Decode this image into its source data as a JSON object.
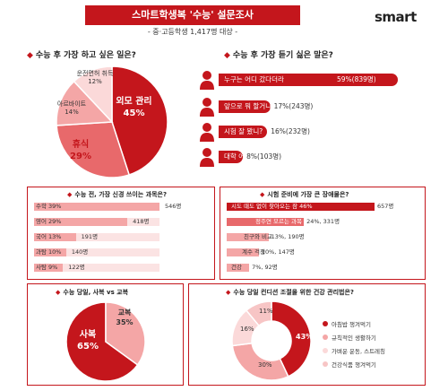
{
  "header": {
    "title": "스마트학생복 '수능' 설문조사",
    "subtitle": "- 중·고등학생 1,417명 대상 -",
    "brand": "smart"
  },
  "colors": {
    "accent": "#c4161c",
    "dark": "#c4161c",
    "mid": "#e8696b",
    "light": "#f4a6a6",
    "lightest": "#fbd9d9"
  },
  "section1": {
    "question": "수능 후 가장 하고 싶은 일은?",
    "labels": {
      "a": "외모 관리",
      "a_pct": "45%",
      "b": "휴식",
      "b_pct": "29%",
      "c": "아르바이트",
      "c_pct": "14%",
      "d": "운전면허 취득",
      "d_pct": "12%"
    }
  },
  "section2": {
    "question": "수능 후 가장 듣기 싫은 말은?",
    "items": [
      {
        "label": "누구는 어디 갔다더라",
        "value": "59%(839명)"
      },
      {
        "label": "앞으로 뭐 할거니?",
        "value": "17%(243명)"
      },
      {
        "label": "시험 잘 봤니?",
        "value": "16%(232명)"
      },
      {
        "label": "대학 어디 쓸거니?",
        "value": "8%(103명)"
      }
    ]
  },
  "section3": {
    "question": "수능 전, 가장 신경 쓰이는 과목은?",
    "items": [
      {
        "label": "수학 39%",
        "value": "546명"
      },
      {
        "label": "영어 29%",
        "value": "418명"
      },
      {
        "label": "국어 13%",
        "value": "191명"
      },
      {
        "label": "과탐 10%",
        "value": "140명"
      },
      {
        "label": "사탐 9%",
        "value": "122명"
      }
    ]
  },
  "section4": {
    "question": "시험 준비에 가장 큰 장애물은?",
    "items": [
      {
        "label": "시도 때도 없이 찾아오는 잠 46%",
        "value": "657명"
      },
      {
        "label": "정주연 모르는 과목",
        "value": "24%, 331명"
      },
      {
        "label": "친구와 비교",
        "value": "13%, 190명"
      },
      {
        "label": "계수 걱정",
        "value": "10%, 147명"
      },
      {
        "label": "건강",
        "value": "7%, 92명"
      }
    ]
  },
  "section5": {
    "question": "수능 당일, 사복 vs 교복",
    "labels": {
      "a": "사복",
      "a_pct": "65%",
      "b": "교복",
      "b_pct": "35%"
    }
  },
  "section6": {
    "question": "수능 당일 컨디션 조절을 위한 건강 관리법은?",
    "labels": {
      "a_pct": "43%",
      "b_pct": "30%",
      "c_pct": "16%",
      "d_pct": "11%"
    },
    "legend": [
      "아침밥 챙겨먹기",
      "규칙적인 생활하기",
      "가벼운 운동, 스트레칭",
      "건강식품 챙겨먹기"
    ]
  },
  "chart_data": [
    {
      "type": "pie",
      "title": "수능 후 가장 하고 싶은 일은?",
      "categories": [
        "외모 관리",
        "휴식",
        "아르바이트",
        "운전면허 취득"
      ],
      "values": [
        45,
        29,
        14,
        12
      ]
    },
    {
      "type": "bar",
      "title": "수능 후 가장 듣기 싫은 말은?",
      "categories": [
        "누구는 어디 갔다더라",
        "앞으로 뭐 할거니?",
        "시험 잘 봤니?",
        "대학 어디 쓸거니?"
      ],
      "values": [
        59,
        17,
        16,
        8
      ],
      "counts": [
        839,
        243,
        232,
        103
      ]
    },
    {
      "type": "bar",
      "title": "수능 전, 가장 신경 쓰이는 과목은?",
      "categories": [
        "수학",
        "영어",
        "국어",
        "과탐",
        "사탐"
      ],
      "values": [
        39,
        29,
        13,
        10,
        9
      ],
      "counts": [
        546,
        418,
        191,
        140,
        122
      ]
    },
    {
      "type": "bar",
      "title": "시험 준비에 가장 큰 장애물은?",
      "categories": [
        "시도 때도 없이 찾아오는 잠",
        "정주연 모르는 과목",
        "친구와 비교",
        "계수 걱정",
        "건강"
      ],
      "values": [
        46,
        24,
        13,
        10,
        7
      ],
      "counts": [
        657,
        331,
        190,
        147,
        92
      ]
    },
    {
      "type": "pie",
      "title": "수능 당일, 사복 vs 교복",
      "categories": [
        "사복",
        "교복"
      ],
      "values": [
        65,
        35
      ]
    },
    {
      "type": "pie",
      "title": "수능 당일 컨디션 조절을 위한 건강 관리법은?",
      "categories": [
        "아침밥 챙겨먹기",
        "규칙적인 생활하기",
        "가벼운 운동, 스트레칭",
        "건강식품 챙겨먹기"
      ],
      "values": [
        43,
        30,
        16,
        11
      ]
    }
  ]
}
